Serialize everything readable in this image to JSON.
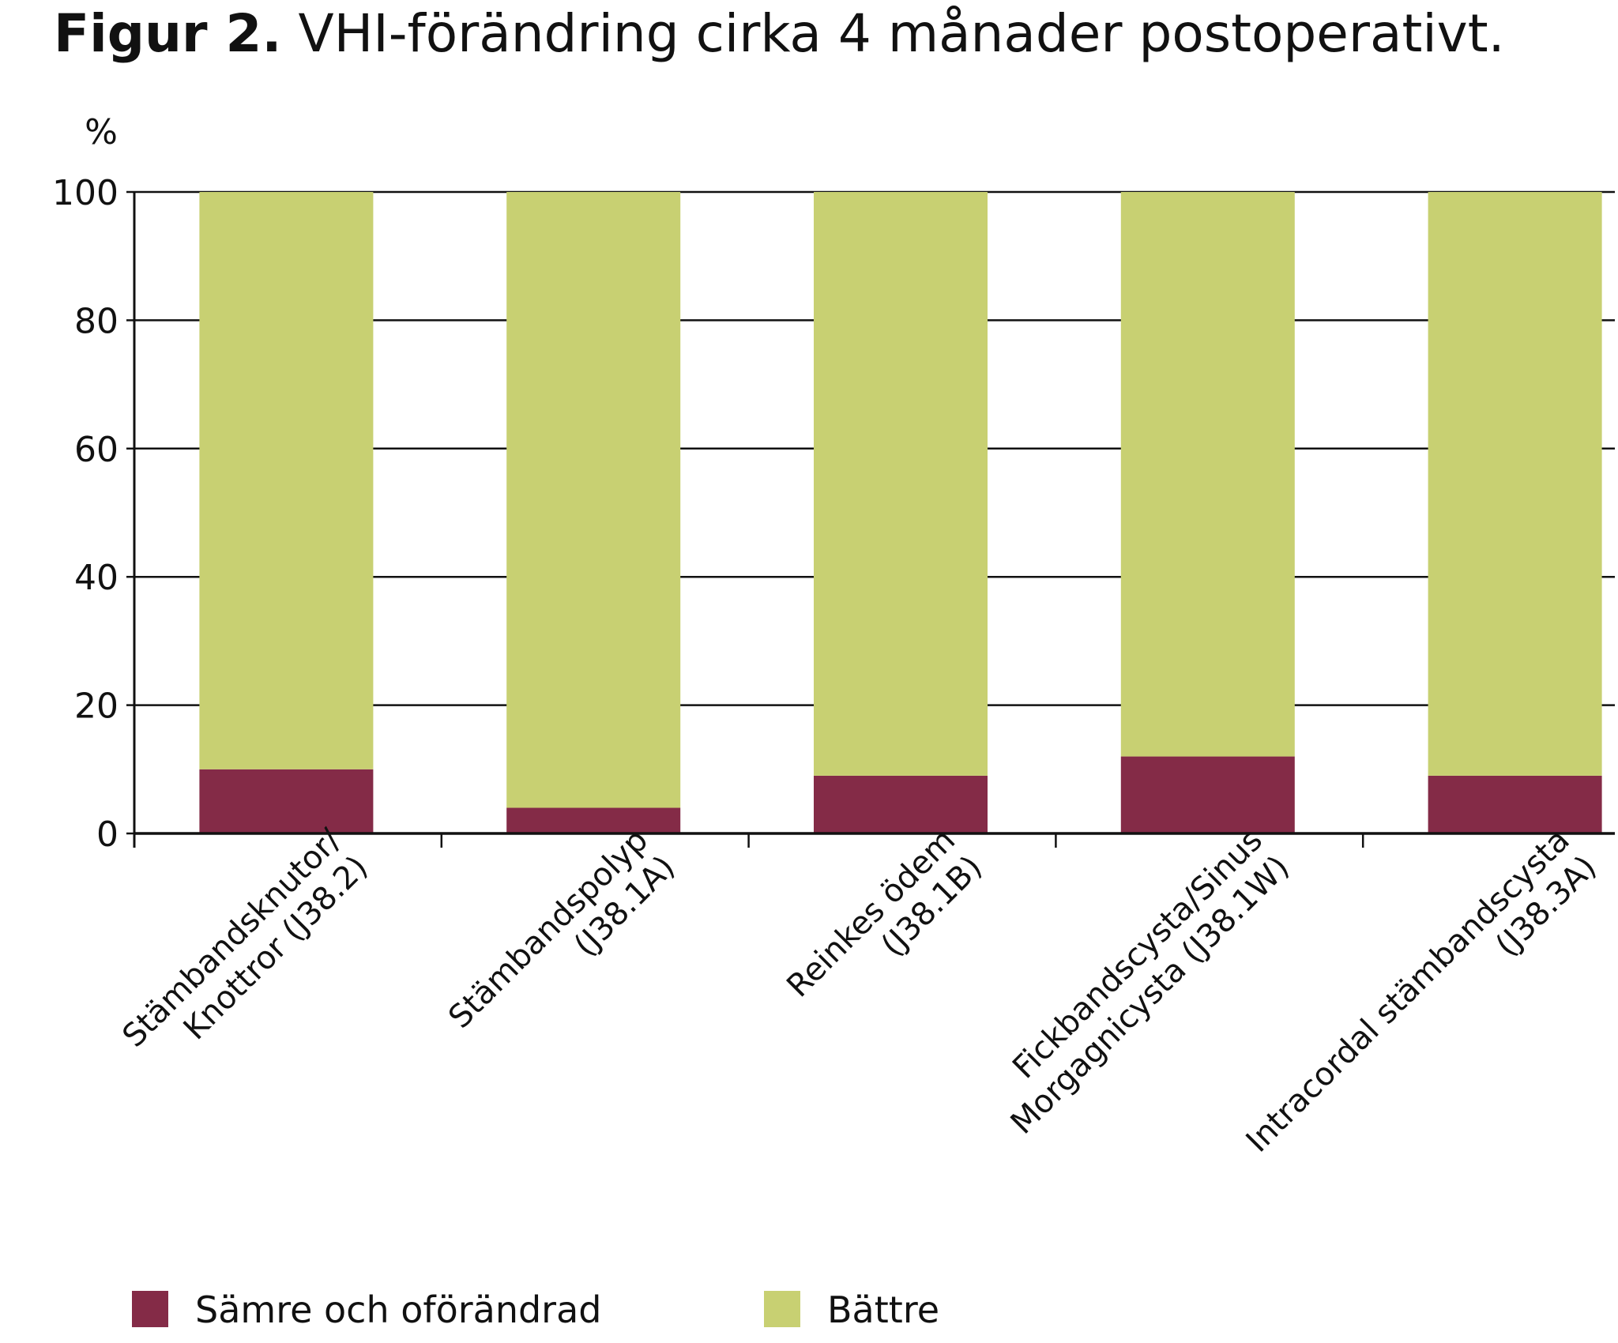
{
  "chart_data": {
    "type": "bar",
    "stacked": true,
    "title_lead": "Figur 2.",
    "title": "VHI-förändring cirka 4 månader postoperativt.",
    "ylabel": "%",
    "ylim": [
      0,
      100
    ],
    "yticks": [
      "0",
      "20",
      "40",
      "60",
      "80",
      "100"
    ],
    "grid": true,
    "legend_position": "bottom",
    "categories": [
      [
        "Stämbandsknutor/",
        "Knottror (J38.2)"
      ],
      [
        "Stämbandspolyp",
        "(J38.1A)"
      ],
      [
        "Reinkes ödem",
        "(J38.1B)"
      ],
      [
        "Fickbandscysta/Sinus",
        "Morgagnicysta (J38.1W)"
      ],
      [
        "Intracordal stämbandscysta",
        "(J38.3A)"
      ]
    ],
    "series": [
      {
        "name": "Sämre och oförändrad",
        "color": "#842b47",
        "values": [
          10,
          4,
          9,
          12,
          9
        ]
      },
      {
        "name": "Bättre",
        "color": "#c8d072",
        "values": [
          90,
          96,
          91,
          88,
          91
        ]
      }
    ]
  }
}
